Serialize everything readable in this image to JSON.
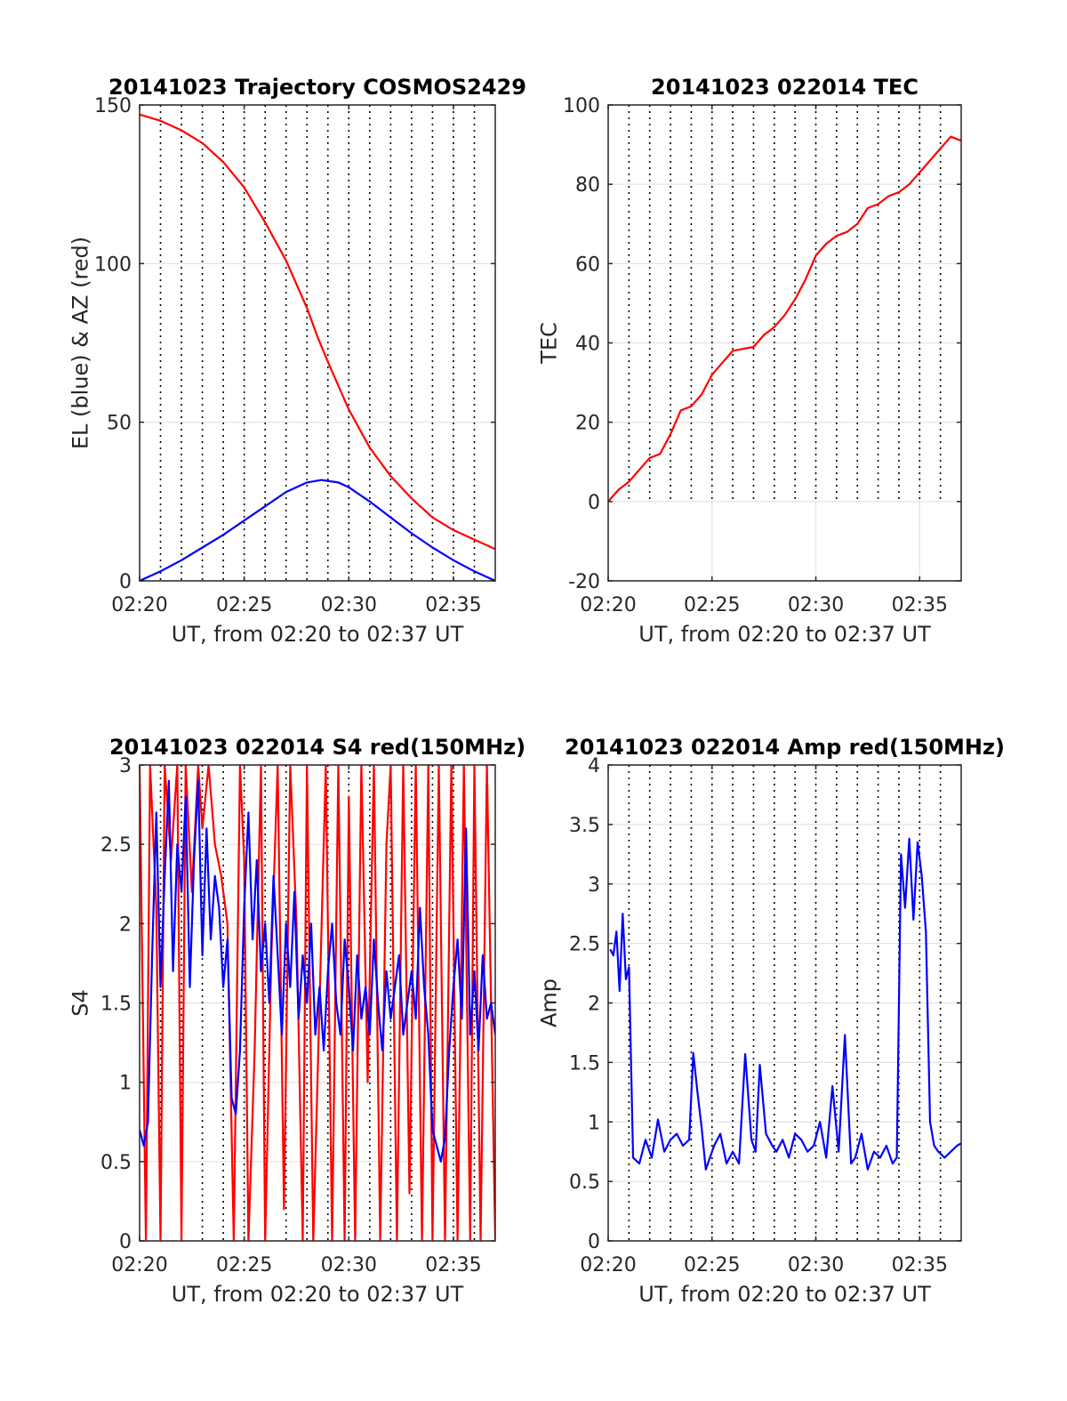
{
  "chart_data": [
    {
      "id": "trajectory",
      "type": "line",
      "title": "20141023 Trajectory COSMOS2429",
      "xlabel": "UT, from 02:20 to 02:37 UT",
      "ylabel": "EL (blue) & AZ (red)",
      "xlim": [
        0,
        17
      ],
      "ylim": [
        0,
        150
      ],
      "x_ticks": [
        0,
        5,
        10,
        15
      ],
      "x_tick_labels": [
        "02:20",
        "02:25",
        "02:30",
        "02:35"
      ],
      "y_ticks": [
        0,
        50,
        100,
        150
      ],
      "y_tick_labels": [
        "0",
        "50",
        "100",
        "150"
      ],
      "grid": true,
      "vertical_dotted_lines": [
        1,
        2,
        3,
        4,
        5,
        6,
        7,
        8,
        9,
        10,
        11,
        12,
        13,
        14,
        15,
        16
      ],
      "series": [
        {
          "color": "#ff0000",
          "x": [
            0,
            1,
            2,
            3,
            4,
            5,
            6,
            7,
            8,
            8.5,
            9,
            10,
            11,
            12,
            13,
            14,
            15,
            16,
            17
          ],
          "y": [
            147,
            145,
            142,
            138,
            132,
            124,
            113,
            101,
            86,
            77,
            69,
            54,
            42,
            33,
            26,
            20,
            16,
            13,
            10
          ]
        },
        {
          "color": "#0000ff",
          "x": [
            0,
            1,
            2,
            3,
            4,
            5,
            6,
            7,
            8,
            8.7,
            9.5,
            10,
            11,
            12,
            13,
            14,
            15,
            16,
            17
          ],
          "y": [
            0,
            3,
            6.5,
            10.5,
            14.5,
            19,
            23.5,
            28,
            31,
            31.8,
            31,
            29.5,
            25,
            20,
            15,
            10.5,
            6.5,
            3,
            0
          ]
        }
      ]
    },
    {
      "id": "tec",
      "type": "line",
      "title": "20141023 022014 TEC",
      "xlabel": "UT, from 02:20 to 02:37 UT",
      "ylabel": "TEC",
      "xlim": [
        0,
        17
      ],
      "ylim": [
        -20,
        100
      ],
      "x_ticks": [
        0,
        5,
        10,
        15
      ],
      "x_tick_labels": [
        "02:20",
        "02:25",
        "02:30",
        "02:35"
      ],
      "y_ticks": [
        -20,
        0,
        20,
        40,
        60,
        80,
        100
      ],
      "y_tick_labels": [
        "-20",
        "0",
        "20",
        "40",
        "60",
        "80",
        "100"
      ],
      "grid": true,
      "vertical_dotted_lines": [
        1,
        2,
        3,
        4,
        5,
        6,
        7,
        8,
        9,
        10,
        11,
        12,
        13,
        14,
        15,
        16
      ],
      "vertical_dotted_ylim": [
        0,
        100
      ],
      "series": [
        {
          "color": "#ff0000",
          "x": [
            0,
            0.5,
            1,
            1.5,
            2,
            2.5,
            3,
            3.5,
            4,
            4.5,
            5,
            5.5,
            6,
            6.5,
            7,
            7.5,
            8,
            8.5,
            9,
            9.5,
            10,
            10.5,
            11,
            11.5,
            12,
            12.5,
            13,
            13.5,
            14,
            14.5,
            15,
            15.5,
            16,
            16.5,
            17
          ],
          "y": [
            0,
            3,
            5,
            8,
            11,
            12,
            17,
            23,
            24,
            27,
            32,
            35,
            38,
            38.5,
            39,
            42,
            44,
            47,
            51,
            56,
            62,
            65,
            67,
            68,
            70,
            74,
            75,
            77,
            78,
            80,
            83,
            86,
            89,
            92,
            91
          ]
        }
      ]
    },
    {
      "id": "s4",
      "type": "line",
      "title": "20141023 022014 S4 red(150MHz)",
      "xlabel": "UT, from 02:20 to 02:37 UT",
      "ylabel": "S4",
      "xlim": [
        0,
        17
      ],
      "ylim": [
        0,
        3
      ],
      "x_ticks": [
        0,
        5,
        10,
        15
      ],
      "x_tick_labels": [
        "02:20",
        "02:25",
        "02:30",
        "02:35"
      ],
      "y_ticks": [
        0,
        0.5,
        1,
        1.5,
        2,
        2.5,
        3
      ],
      "y_tick_labels": [
        "0",
        "0.5",
        "1",
        "1.5",
        "2",
        "2.5",
        "3"
      ],
      "grid": true,
      "vertical_dotted_lines": [
        1,
        2,
        3,
        4,
        5,
        6,
        7,
        8,
        9,
        10,
        11,
        12,
        13,
        14,
        15,
        16
      ],
      "series": [
        {
          "color": "#ff0000",
          "x": [
            0,
            0.3,
            0.5,
            0.8,
            1,
            1.2,
            1.5,
            1.8,
            2,
            2.2,
            2.5,
            2.8,
            3,
            3.3,
            3.6,
            3.9,
            4.2,
            4.5,
            4.8,
            5,
            5.2,
            5.5,
            5.8,
            6,
            6.3,
            6.6,
            6.9,
            7.2,
            7.5,
            7.8,
            8,
            8.3,
            8.6,
            8.9,
            9.2,
            9.5,
            9.8,
            10,
            10.3,
            10.6,
            10.9,
            11.2,
            11.5,
            11.8,
            12,
            12.3,
            12.6,
            12.9,
            13.2,
            13.5,
            13.8,
            14,
            14.3,
            14.6,
            14.9,
            15.2,
            15.5,
            15.8,
            16,
            16.3,
            16.6,
            17
          ],
          "y": [
            3,
            0,
            3,
            2.1,
            0,
            3,
            2.4,
            3,
            0,
            3,
            2.2,
            3,
            2.6,
            3,
            2.5,
            2.3,
            2.0,
            0,
            3,
            2.4,
            0,
            1.2,
            3,
            0,
            1.8,
            3,
            0.2,
            3,
            2.0,
            0,
            3,
            0,
            1.5,
            3,
            0,
            3,
            0,
            2.8,
            0,
            3,
            1.0,
            3,
            0,
            2.5,
            3,
            0,
            3,
            0.3,
            3,
            0,
            3,
            0,
            3,
            0,
            3,
            0,
            3,
            0,
            3,
            0,
            3,
            0
          ]
        },
        {
          "color": "#0000ff",
          "x": [
            0,
            0.2,
            0.4,
            0.6,
            0.8,
            1,
            1.2,
            1.4,
            1.6,
            1.8,
            2,
            2.2,
            2.4,
            2.6,
            2.8,
            3,
            3.2,
            3.4,
            3.6,
            3.8,
            4,
            4.2,
            4.4,
            4.6,
            4.8,
            5,
            5.2,
            5.4,
            5.6,
            5.8,
            6,
            6.2,
            6.4,
            6.6,
            6.8,
            7,
            7.2,
            7.4,
            7.6,
            7.8,
            8,
            8.2,
            8.4,
            8.6,
            8.8,
            9,
            9.2,
            9.4,
            9.6,
            9.8,
            10,
            10.2,
            10.4,
            10.6,
            10.8,
            11,
            11.2,
            11.4,
            11.6,
            11.8,
            12,
            12.2,
            12.4,
            12.6,
            12.8,
            13,
            13.2,
            13.4,
            13.6,
            13.8,
            14,
            14.2,
            14.4,
            14.6,
            14.8,
            15,
            15.2,
            15.4,
            15.6,
            15.8,
            16,
            16.2,
            16.4,
            16.6,
            16.8,
            17
          ],
          "y": [
            0.7,
            0.6,
            0.75,
            1.8,
            2.7,
            1.6,
            2.3,
            2.9,
            1.7,
            2.5,
            2.2,
            2.8,
            1.6,
            2.4,
            2.9,
            1.8,
            2.6,
            1.9,
            2.3,
            2.1,
            1.6,
            1.9,
            0.9,
            0.8,
            1.2,
            2.1,
            2.7,
            1.9,
            2.4,
            1.7,
            2.0,
            1.5,
            2.3,
            1.8,
            1.3,
            2.0,
            1.6,
            2.2,
            1.4,
            1.8,
            1.5,
            2.0,
            1.3,
            1.6,
            1.2,
            1.7,
            2.0,
            1.5,
            1.3,
            1.9,
            1.6,
            1.2,
            1.8,
            1.4,
            1.6,
            1.3,
            1.9,
            1.5,
            1.2,
            1.7,
            1.4,
            1.6,
            1.8,
            1.3,
            1.5,
            1.7,
            1.4,
            2.1,
            1.6,
            1.3,
            0.7,
            0.6,
            0.5,
            0.65,
            1.2,
            1.6,
            1.9,
            1.4,
            2.6,
            1.3,
            1.7,
            1.2,
            1.8,
            1.4,
            1.5,
            1.3
          ]
        }
      ]
    },
    {
      "id": "amp",
      "type": "line",
      "title": "20141023 022014 Amp red(150MHz)",
      "xlabel": "UT, from 02:20 to 02:37 UT",
      "ylabel": "Amp",
      "xlim": [
        0,
        17
      ],
      "ylim": [
        0,
        4
      ],
      "x_ticks": [
        0,
        5,
        10,
        15
      ],
      "x_tick_labels": [
        "02:20",
        "02:25",
        "02:30",
        "02:35"
      ],
      "y_ticks": [
        0,
        0.5,
        1,
        1.5,
        2,
        2.5,
        3,
        3.5,
        4
      ],
      "y_tick_labels": [
        "0",
        "0.5",
        "1",
        "1.5",
        "2",
        "2.5",
        "3",
        "3.5",
        "4"
      ],
      "grid": true,
      "vertical_dotted_lines": [
        1,
        2,
        3,
        4,
        5,
        6,
        7,
        8,
        9,
        10,
        11,
        12,
        13,
        14,
        15,
        16
      ],
      "series": [
        {
          "color": "#0000ff",
          "x": [
            0.1,
            0.25,
            0.4,
            0.55,
            0.7,
            0.85,
            1.0,
            1.2,
            1.5,
            1.8,
            2.1,
            2.4,
            2.7,
            3.0,
            3.3,
            3.6,
            3.9,
            4.1,
            4.3,
            4.5,
            4.7,
            4.9,
            5.1,
            5.4,
            5.7,
            6.0,
            6.3,
            6.6,
            6.9,
            7.1,
            7.3,
            7.6,
            7.9,
            8.1,
            8.4,
            8.7,
            9.0,
            9.3,
            9.6,
            9.9,
            10.2,
            10.5,
            10.8,
            11.1,
            11.4,
            11.7,
            11.9,
            12.2,
            12.5,
            12.8,
            13.1,
            13.4,
            13.7,
            13.9,
            14.1,
            14.3,
            14.5,
            14.7,
            14.9,
            15.1,
            15.3,
            15.5,
            15.7,
            15.9,
            16.2,
            16.5,
            16.8,
            17.0
          ],
          "y": [
            2.45,
            2.4,
            2.6,
            2.1,
            2.75,
            2.2,
            2.3,
            0.7,
            0.65,
            0.85,
            0.7,
            1.02,
            0.75,
            0.85,
            0.9,
            0.8,
            0.85,
            1.58,
            1.25,
            0.95,
            0.6,
            0.7,
            0.8,
            0.9,
            0.65,
            0.75,
            0.65,
            1.57,
            0.85,
            0.75,
            1.48,
            0.9,
            0.8,
            0.75,
            0.85,
            0.7,
            0.9,
            0.85,
            0.75,
            0.8,
            1.0,
            0.7,
            1.3,
            0.75,
            1.73,
            0.65,
            0.7,
            0.9,
            0.6,
            0.75,
            0.7,
            0.8,
            0.65,
            0.7,
            3.25,
            2.8,
            3.38,
            2.7,
            3.35,
            3.07,
            2.6,
            1.0,
            0.8,
            0.75,
            0.7,
            0.75,
            0.8,
            0.82
          ]
        }
      ]
    }
  ]
}
